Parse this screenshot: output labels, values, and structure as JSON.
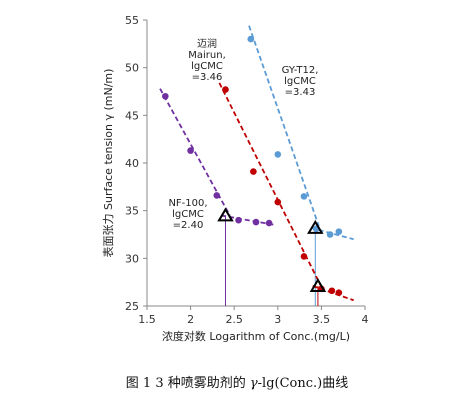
{
  "chart_data": {
    "type": "scatter",
    "xlabel": "浓度对数 Logarithm of Conc.(mg/L)",
    "ylabel": "表面张力 Surface tension γ (mN/m)",
    "xlim": [
      1.5,
      4
    ],
    "ylim": [
      25,
      55
    ],
    "xticks": [
      1.5,
      2,
      2.5,
      3,
      3.5,
      4
    ],
    "yticks": [
      25,
      30,
      35,
      40,
      45,
      50,
      55
    ],
    "xtick_labels": [
      "1.5",
      "2",
      "2.5",
      "3",
      "3.5",
      "4"
    ],
    "ytick_labels": [
      "25",
      "30",
      "35",
      "40",
      "45",
      "50",
      "55"
    ],
    "grid": false,
    "series": [
      {
        "name": "NF-100",
        "color": "#7030a0",
        "points": [
          [
            1.71,
            47.0
          ],
          [
            2.0,
            41.3
          ],
          [
            2.3,
            36.6
          ],
          [
            2.55,
            34.0
          ],
          [
            2.75,
            33.8
          ],
          [
            2.9,
            33.7
          ]
        ],
        "fit_lines": [
          [
            [
              1.65,
              47.8
            ],
            [
              2.45,
              34.5
            ]
          ],
          [
            [
              2.35,
              34.5
            ],
            [
              2.97,
              33.5
            ]
          ]
        ],
        "cmc_marker": [
          2.4,
          34.5
        ],
        "label_lines": [
          "NF-100,",
          "lgCMC",
          "=2.40"
        ]
      },
      {
        "name": "Mairun",
        "color": "#c00000",
        "points": [
          [
            2.4,
            47.7
          ],
          [
            2.72,
            39.1
          ],
          [
            3.0,
            35.9
          ],
          [
            3.3,
            30.2
          ],
          [
            3.5,
            26.8
          ],
          [
            3.62,
            26.6
          ],
          [
            3.7,
            26.4
          ]
        ],
        "fit_lines": [
          [
            [
              2.33,
              48.4
            ],
            [
              3.5,
              27.0
            ]
          ],
          [
            [
              3.4,
              27.1
            ],
            [
              3.87,
              25.6
            ]
          ]
        ],
        "cmc_marker": [
          3.46,
          27.1
        ],
        "label_lines": [
          "迈润",
          "Mairun,",
          "lgCMC",
          "=3.46"
        ]
      },
      {
        "name": "GY-T12",
        "color": "#5b9bd5",
        "points": [
          [
            2.69,
            53.0
          ],
          [
            3.0,
            40.9
          ],
          [
            3.3,
            36.5
          ],
          [
            3.44,
            33.1
          ],
          [
            3.6,
            32.5
          ],
          [
            3.7,
            32.8
          ]
        ],
        "fit_lines": [
          [
            [
              2.67,
              54.4
            ],
            [
              3.47,
              33.4
            ]
          ],
          [
            [
              3.38,
              33.2
            ],
            [
              3.87,
              32.0
            ]
          ]
        ],
        "cmc_marker": [
          3.43,
          33.2
        ],
        "label_lines": [
          "GY-T12,",
          "lgCMC",
          "=3.43"
        ]
      }
    ]
  },
  "caption": {
    "prefix": "图 1 3 种喷雾助剂的 ",
    "symbol": "γ",
    "suffix": "-lg(Conc.)曲线"
  }
}
